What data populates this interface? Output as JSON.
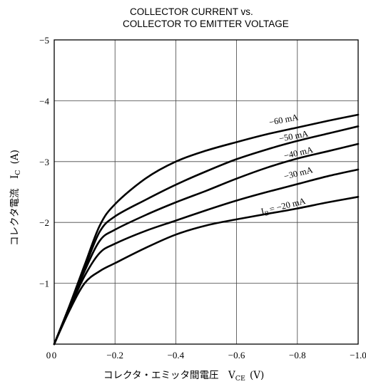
{
  "chart_data": {
    "type": "line",
    "title_lines": [
      "COLLECTOR CURRENT vs.",
      "COLLECTOR TO EMITTER VOLTAGE"
    ],
    "xlabel": "コレクタ・エミッタ間電圧　V",
    "xlabel_sub": "CE",
    "xlabel_unit": "(V)",
    "ylabel": "コレクタ電流　I",
    "ylabel_sub": "C",
    "ylabel_unit": "(A)",
    "xlim": [
      0,
      -1.0
    ],
    "ylim": [
      0,
      -5
    ],
    "x_ticks": [
      0,
      -0.2,
      -0.4,
      -0.6,
      -0.8,
      -1.0
    ],
    "x_tick_labels": [
      "0",
      "−0.2",
      "−0.4",
      "−0.6",
      "−0.8",
      "−1.0"
    ],
    "y_ticks": [
      -1,
      -2,
      -3,
      -4,
      -5
    ],
    "y_tick_labels": [
      "−1",
      "−2",
      "−3",
      "−4",
      "−5"
    ],
    "grid": true,
    "series": [
      {
        "name": "−60 mA",
        "label_prefix": "",
        "label_prefix_sub": "",
        "label_text": "−60 mA",
        "x": [
          0,
          -0.05,
          -0.1,
          -0.15,
          -0.2,
          -0.3,
          -0.4,
          -0.5,
          -0.6,
          -0.7,
          -0.8,
          -0.9,
          -1.0
        ],
        "y": [
          0,
          -0.63,
          -1.3,
          -1.95,
          -2.3,
          -2.72,
          -3.0,
          -3.18,
          -3.32,
          -3.45,
          -3.56,
          -3.67,
          -3.77
        ]
      },
      {
        "name": "−50 mA",
        "label_prefix": "",
        "label_prefix_sub": "",
        "label_text": "−50 mA",
        "x": [
          0,
          -0.05,
          -0.1,
          -0.15,
          -0.2,
          -0.3,
          -0.4,
          -0.5,
          -0.6,
          -0.7,
          -0.8,
          -0.9,
          -1.0
        ],
        "y": [
          0,
          -0.62,
          -1.25,
          -1.85,
          -2.1,
          -2.37,
          -2.62,
          -2.84,
          -3.04,
          -3.2,
          -3.34,
          -3.46,
          -3.58
        ]
      },
      {
        "name": "−40 mA",
        "label_prefix": "",
        "label_prefix_sub": "",
        "label_text": "−40 mA",
        "x": [
          0,
          -0.05,
          -0.1,
          -0.15,
          -0.2,
          -0.3,
          -0.4,
          -0.5,
          -0.6,
          -0.7,
          -0.8,
          -0.9,
          -1.0
        ],
        "y": [
          0,
          -0.6,
          -1.2,
          -1.7,
          -1.88,
          -2.12,
          -2.33,
          -2.52,
          -2.72,
          -2.9,
          -3.05,
          -3.17,
          -3.29
        ]
      },
      {
        "name": "−30 mA",
        "label_prefix": "",
        "label_prefix_sub": "",
        "label_text": "−30 mA",
        "x": [
          0,
          -0.05,
          -0.1,
          -0.15,
          -0.2,
          -0.3,
          -0.4,
          -0.5,
          -0.6,
          -0.7,
          -0.8,
          -0.9,
          -1.0
        ],
        "y": [
          0,
          -0.58,
          -1.12,
          -1.5,
          -1.65,
          -1.86,
          -2.03,
          -2.2,
          -2.36,
          -2.5,
          -2.63,
          -2.76,
          -2.87
        ]
      },
      {
        "name": "I_B = −20 mA",
        "label_prefix": "I",
        "label_prefix_sub": "B",
        "label_text": "= −20 mA",
        "x": [
          0,
          -0.05,
          -0.1,
          -0.15,
          -0.2,
          -0.3,
          -0.4,
          -0.5,
          -0.6,
          -0.7,
          -0.8,
          -0.9,
          -1.0
        ],
        "y": [
          0,
          -0.55,
          -1.0,
          -1.2,
          -1.33,
          -1.58,
          -1.8,
          -1.95,
          -2.05,
          -2.14,
          -2.23,
          -2.33,
          -2.42
        ]
      }
    ]
  }
}
